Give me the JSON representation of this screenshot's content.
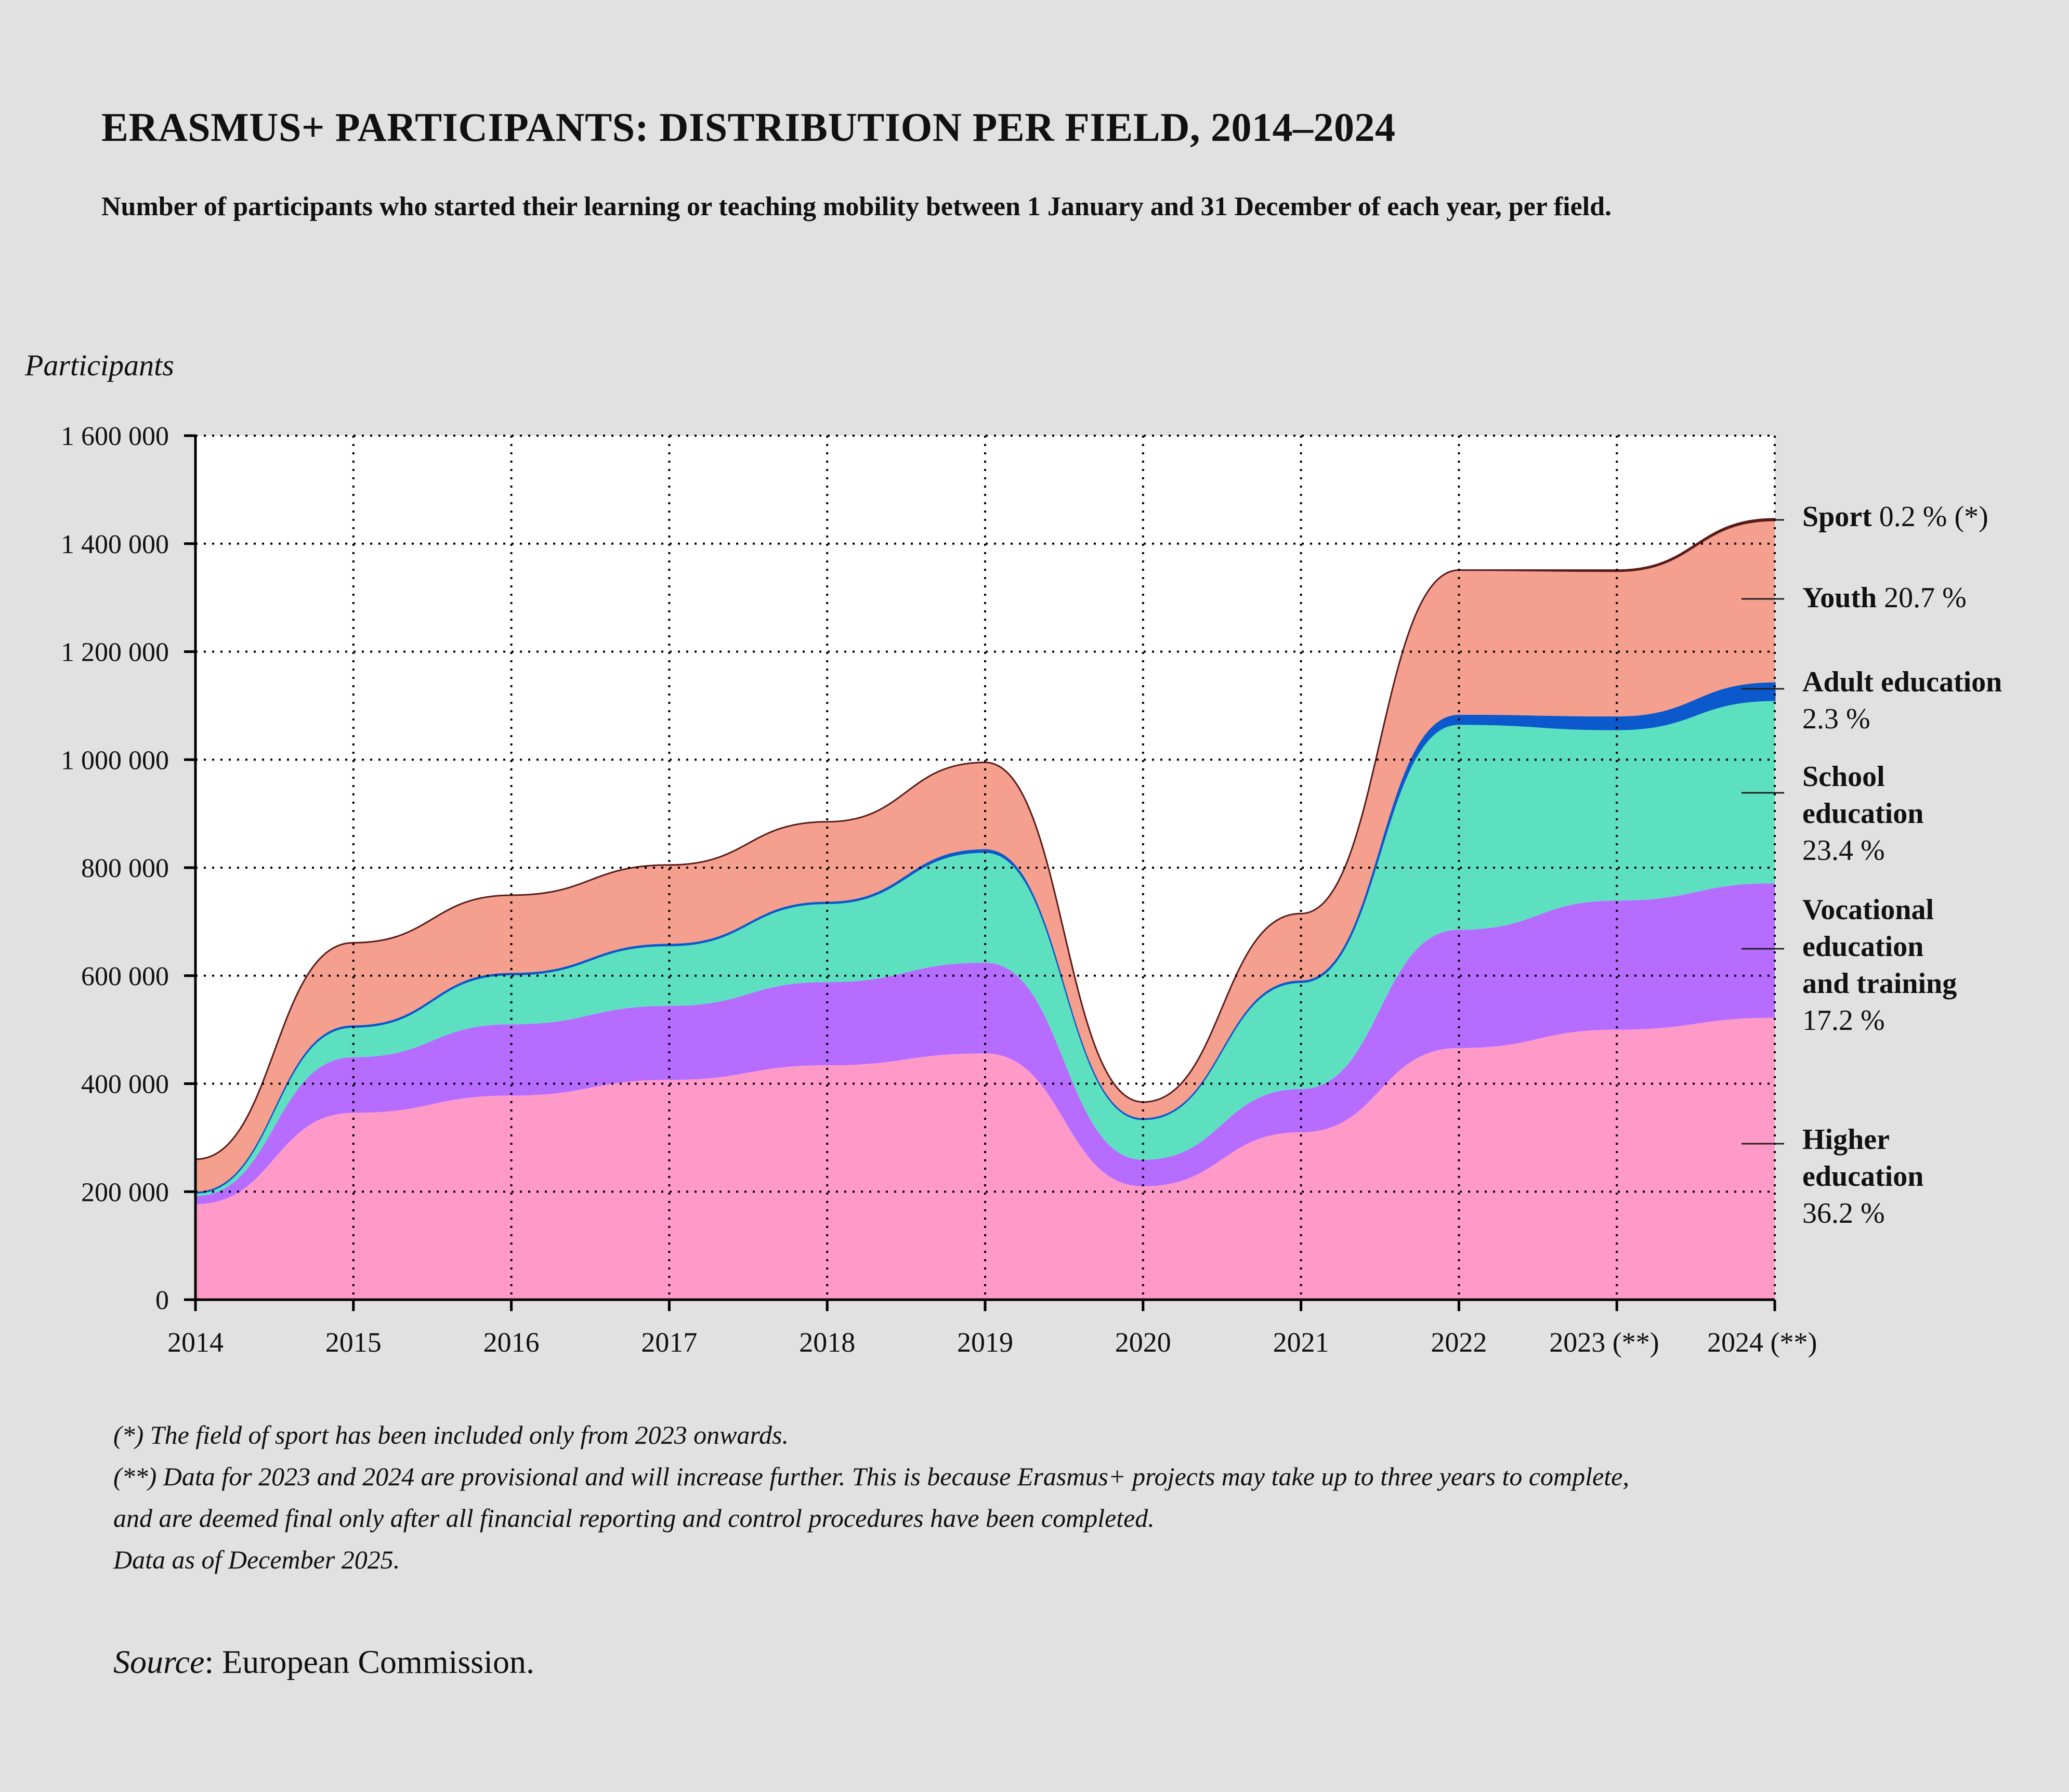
{
  "title": "ERASMUS+ PARTICIPANTS: DISTRIBUTION PER FIELD, 2014–2024",
  "subtitle": "Number of participants who started their learning or teaching mobility between 1 January and 31 December of each year, per field.",
  "notes": [
    "(*) The field of sport has been included only from 2023 onwards.",
    "(**) Data for 2023 and 2024 are provisional and will increase further. This is because Erasmus+ projects may take up to three years to complete,",
    "and are deemed final only after all financial reporting and control procedures have been completed.",
    "Data as of December 2025."
  ],
  "source": {
    "label": "Source",
    "text": ": European Commission."
  },
  "chart_data": {
    "type": "area",
    "stacked": true,
    "ylabel": "Participants",
    "ylim": [
      0,
      1600000
    ],
    "yticks": [
      0,
      200000,
      400000,
      600000,
      800000,
      1000000,
      1200000,
      1400000,
      1600000
    ],
    "ytick_labels": [
      "0",
      "200 000",
      "400 000",
      "600 000",
      "800 000",
      "1 000 000",
      "1 200 000",
      "1 400 000",
      "1 600 000"
    ],
    "x": [
      "2014",
      "2015",
      "2016",
      "2017",
      "2018",
      "2019",
      "2020",
      "2021",
      "2022",
      "2023",
      "2024"
    ],
    "xtick_labels": [
      "2014",
      "2015",
      "2016",
      "2017",
      "2018",
      "2019",
      "2020",
      "2021",
      "2022",
      "2023 (**)",
      "2024 (**)"
    ],
    "grid": true,
    "legend": "right (direct labels)",
    "series": [
      {
        "name": "Higher education",
        "share": "36.2 %",
        "label_lines": [
          "Higher",
          "education"
        ],
        "color": "#ff99c8",
        "values": [
          177000,
          346000,
          378000,
          407000,
          434000,
          456000,
          210000,
          310000,
          466000,
          500000,
          522000
        ]
      },
      {
        "name": "Vocational education and training",
        "share": "17.2 %",
        "label_lines": [
          "Vocational",
          "education",
          "and training"
        ],
        "color": "#b56cff",
        "values": [
          15000,
          103000,
          132000,
          137000,
          154000,
          168000,
          49000,
          80000,
          219000,
          239000,
          249000
        ]
      },
      {
        "name": "School education",
        "share": "23.4 %",
        "label_lines": [
          "School",
          "education"
        ],
        "color": "#5de0bf",
        "values": [
          6000,
          56000,
          92000,
          112000,
          146000,
          205000,
          75000,
          198000,
          381000,
          317000,
          339000
        ]
      },
      {
        "name": "Adult education",
        "share": "2.3 %",
        "label_lines": [
          "Adult education"
        ],
        "color": "#0b59cc",
        "values": [
          2000,
          3000,
          3000,
          3000,
          3000,
          5000,
          2000,
          3000,
          17000,
          24000,
          33000
        ]
      },
      {
        "name": "Youth",
        "share": "20.7 %",
        "label_lines": [
          "Youth"
        ],
        "inline": true,
        "color": "#f5a08e",
        "values": [
          60000,
          153000,
          144000,
          146000,
          148000,
          161000,
          30000,
          124000,
          268000,
          269000,
          300000
        ]
      },
      {
        "name": "Sport",
        "share": "0.2 % (*)",
        "label_lines": [
          "Sport"
        ],
        "inline": true,
        "color": "#5a1a1a",
        "values": [
          0,
          0,
          0,
          0,
          0,
          0,
          0,
          0,
          0,
          2000,
          3000
        ]
      }
    ]
  }
}
